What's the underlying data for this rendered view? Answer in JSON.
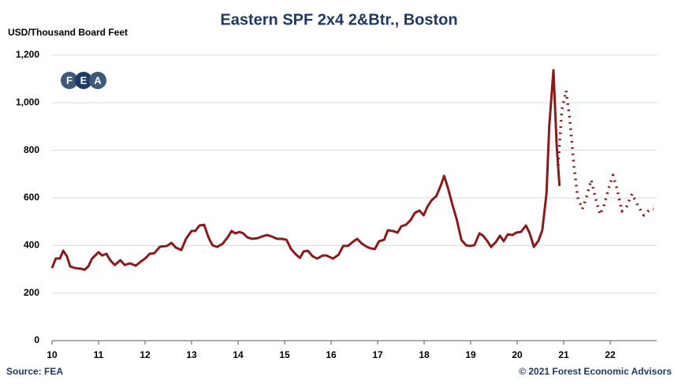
{
  "chart_data": {
    "type": "line",
    "title": "Eastern SPF 2x4 2&Btr., Boston",
    "y_axis_label": "USD/Thousand Board Feet",
    "source": "Source: FEA",
    "copyright": "© 2021 Forest Economic Advisors",
    "logo": [
      "F",
      "E",
      "A"
    ],
    "xlim": [
      10,
      23
    ],
    "xticks": [
      10,
      11,
      12,
      13,
      14,
      15,
      16,
      17,
      18,
      19,
      20,
      21,
      22
    ],
    "ylim": [
      0,
      1200
    ],
    "yticks": [
      0,
      200,
      400,
      600,
      800,
      {
        "value": 1000,
        "label": "1,000"
      },
      {
        "value": 1200,
        "label": "1,200"
      }
    ],
    "grid": true,
    "series": [
      {
        "color": "#8b1a1a",
        "style": "solid",
        "x": [
          10.0,
          10.08,
          10.17,
          10.24,
          10.32,
          10.39,
          10.5,
          10.63,
          10.7,
          10.78,
          10.86,
          11.0,
          11.08,
          11.17,
          11.25,
          11.35,
          11.47,
          11.56,
          11.68,
          11.8,
          11.9,
          12.0,
          12.1,
          12.2,
          12.32,
          12.47,
          12.57,
          12.66,
          12.78,
          12.88,
          13.0,
          13.08,
          13.17,
          13.27,
          13.37,
          13.45,
          13.55,
          13.67,
          13.79,
          13.86,
          13.94,
          14.03,
          14.11,
          14.2,
          14.3,
          14.42,
          14.52,
          14.62,
          14.72,
          14.84,
          14.94,
          15.04,
          15.14,
          15.25,
          15.33,
          15.41,
          15.5,
          15.6,
          15.7,
          15.82,
          15.9,
          16.04,
          16.16,
          16.26,
          16.36,
          16.46,
          16.56,
          16.66,
          16.77,
          16.85,
          16.94,
          17.03,
          17.14,
          17.22,
          17.33,
          17.43,
          17.51,
          17.61,
          17.71,
          17.8,
          17.9,
          17.99,
          18.07,
          18.16,
          18.26,
          18.36,
          18.43,
          18.51,
          18.61,
          18.7,
          18.8,
          18.9,
          18.98,
          19.08,
          19.19,
          19.27,
          19.36,
          19.44,
          19.54,
          19.63,
          19.71,
          19.8,
          19.9,
          19.98,
          20.08,
          20.19,
          20.27,
          20.36,
          20.46,
          20.54,
          20.63,
          20.69,
          20.78,
          20.85,
          20.91
        ],
        "values": [
          305,
          345,
          345,
          378,
          355,
          312,
          305,
          302,
          298,
          312,
          345,
          372,
          358,
          365,
          338,
          318,
          338,
          318,
          325,
          315,
          331,
          345,
          365,
          368,
          395,
          398,
          411,
          391,
          381,
          428,
          461,
          461,
          484,
          487,
          431,
          401,
          394,
          408,
          438,
          461,
          451,
          457,
          451,
          434,
          428,
          431,
          438,
          444,
          438,
          428,
          428,
          424,
          385,
          361,
          348,
          375,
          378,
          355,
          345,
          358,
          358,
          345,
          361,
          398,
          398,
          414,
          428,
          408,
          394,
          388,
          385,
          418,
          424,
          464,
          461,
          454,
          481,
          487,
          507,
          537,
          547,
          527,
          563,
          590,
          607,
          653,
          693,
          643,
          570,
          510,
          424,
          401,
          398,
          401,
          451,
          441,
          418,
          394,
          414,
          441,
          418,
          447,
          444,
          454,
          457,
          484,
          451,
          394,
          421,
          464,
          617,
          902,
          1137,
          819,
          650
        ]
      },
      {
        "color": "#8b1a1a",
        "style": "dotted",
        "x": [
          20.88,
          20.96,
          21.05,
          21.13,
          21.22,
          21.3,
          21.4,
          21.5,
          21.59,
          21.68,
          21.78,
          21.86,
          21.96,
          22.06,
          22.15,
          22.25,
          22.35,
          22.47,
          22.59,
          22.72,
          22.86,
          22.93
        ],
        "values": [
          736,
          968,
          1051,
          935,
          736,
          603,
          553,
          610,
          676,
          603,
          530,
          563,
          636,
          696,
          636,
          544,
          563,
          617,
          570,
          527,
          553,
          553
        ]
      }
    ]
  }
}
